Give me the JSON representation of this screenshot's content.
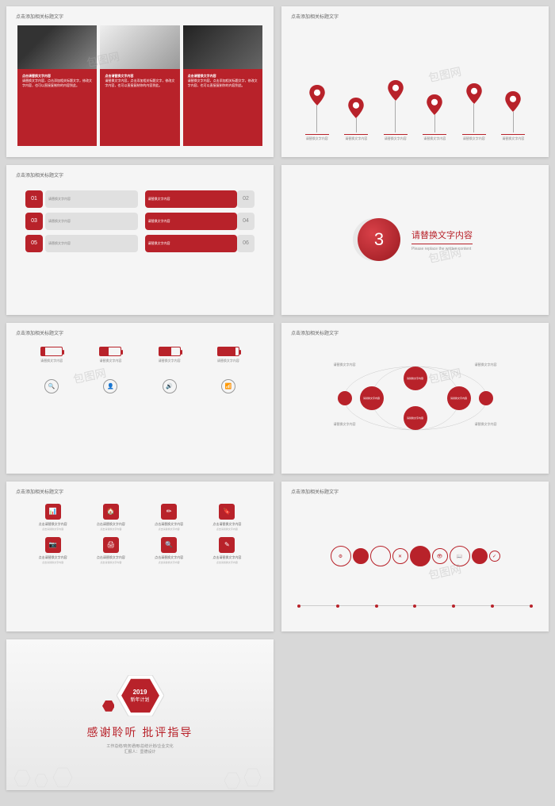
{
  "colors": {
    "accent": "#b8222a",
    "bg": "#f5f5f5",
    "pageBg": "#d8d8d8",
    "text": "#666",
    "muted": "#888"
  },
  "common": {
    "slideTitle": "点击添加相关标题文字",
    "placeholder": "请替换文字内容",
    "placeholderLong": "点击请替换文字内容",
    "lorem": "请替换文字内容，点击添加相关标题文字，修改文字内容，也可以直接复制你的内容到此。"
  },
  "slide1": {
    "cards": [
      {
        "title": "点击请替换文字内容",
        "body": "请替换文字内容，点击添加相关标题文字，修改文字内容，也可以直接复制你的内容到此。"
      },
      {
        "title": "点击请替换文字内容",
        "body": "请替换文字内容，点击添加相关标题文字，修改文字内容，也可以直接复制你的内容到此。"
      },
      {
        "title": "点击请替换文字内容",
        "body": "请替换文字内容，点击添加相关标题文字，修改文字内容，也可以直接复制你的内容到此。"
      }
    ]
  },
  "slide2": {
    "pins": [
      {
        "lineHeight": 34,
        "label": "请替换文字内容"
      },
      {
        "lineHeight": 18,
        "label": "请替换文字内容"
      },
      {
        "lineHeight": 40,
        "label": "请替换文字内容"
      },
      {
        "lineHeight": 22,
        "label": "请替换文字内容"
      },
      {
        "lineHeight": 36,
        "label": "请替换文字内容"
      },
      {
        "lineHeight": 26,
        "label": "请替换文字内容"
      }
    ]
  },
  "slide3": {
    "items": [
      {
        "num": "01",
        "label": "请替换文字内容",
        "alt": false
      },
      {
        "num": "02",
        "label": "请替换文字内容",
        "alt": true
      },
      {
        "num": "03",
        "label": "请替换文字内容",
        "alt": false
      },
      {
        "num": "04",
        "label": "请替换文字内容",
        "alt": true
      },
      {
        "num": "05",
        "label": "请替换文字内容",
        "alt": false
      },
      {
        "num": "06",
        "label": "请替换文字内容",
        "alt": true
      }
    ]
  },
  "slide4": {
    "number": "3",
    "title": "请替换文字内容",
    "subtitle": "Please replace the written content"
  },
  "slide5": {
    "batteries": [
      {
        "fill": 20,
        "label": "请替换文字内容"
      },
      {
        "fill": 40,
        "label": "请替换文字内容"
      },
      {
        "fill": 60,
        "label": "请替换文字内容"
      },
      {
        "fill": 85,
        "label": "请替换文字内容"
      }
    ],
    "icons": [
      "🔍",
      "👤",
      "🔊",
      "📶"
    ]
  },
  "slide6": {
    "centerLabel": "请替换文字内容",
    "nodes": [
      "请替换文字内容",
      "请替换文字内容",
      "请替换文字内容",
      "请替换文字内容"
    ],
    "sideLabels": [
      "请替换文字内容",
      "请替换文字内容",
      "请替换文字内容",
      "请替换文字内容"
    ]
  },
  "slide7": {
    "row1": [
      {
        "icon": "📊",
        "title": "点击请替换文字内容",
        "desc": "点击请替换文字内容"
      },
      {
        "icon": "🏠",
        "title": "点击请替换文字内容",
        "desc": "点击请替换文字内容"
      },
      {
        "icon": "✏",
        "title": "点击请替换文字内容",
        "desc": "点击请替换文字内容"
      },
      {
        "icon": "🔖",
        "title": "点击请替换文字内容",
        "desc": "点击请替换文字内容"
      }
    ],
    "row2": [
      {
        "icon": "📷",
        "title": "点击请替换文字内容",
        "desc": "点击请替换文字内容"
      },
      {
        "icon": "🖨",
        "title": "点击请替换文字内容",
        "desc": "点击请替换文字内容"
      },
      {
        "icon": "🔍",
        "title": "点击请替换文字内容",
        "desc": "点击请替换文字内容"
      },
      {
        "icon": "✎",
        "title": "点击请替换文字内容",
        "desc": "点击请替换文字内容"
      }
    ]
  },
  "slide8": {
    "circles": [
      {
        "size": "big",
        "filled": false,
        "icon": "⚙"
      },
      {
        "size": "med",
        "filled": true,
        "icon": ""
      },
      {
        "size": "big",
        "filled": false,
        "icon": ""
      },
      {
        "size": "med",
        "filled": false,
        "icon": "✕"
      },
      {
        "size": "big",
        "filled": true,
        "icon": ""
      },
      {
        "size": "med",
        "filled": false,
        "icon": "👁"
      },
      {
        "size": "big",
        "filled": false,
        "icon": "📖"
      },
      {
        "size": "med",
        "filled": true,
        "icon": ""
      },
      {
        "size": "sm",
        "filled": false,
        "icon": "✓"
      }
    ]
  },
  "slide9": {
    "year": "2019",
    "plan": "新年计划",
    "title": "感谢聆听 批评指导",
    "subtitle1": "工作总结/商务通用/总结计划/企业文化",
    "subtitle2": "汇报人：壹德设计"
  },
  "watermark": "包图网"
}
